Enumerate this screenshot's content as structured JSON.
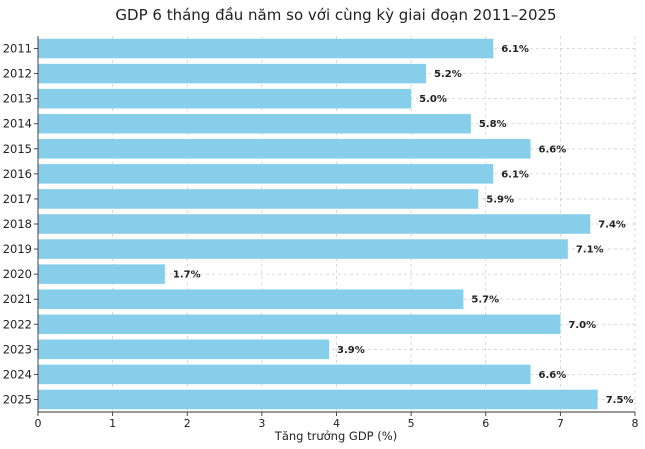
{
  "chart_data": {
    "type": "bar",
    "orientation": "horizontal",
    "title": "GDP 6 tháng đầu năm so với cùng kỳ giai đoạn 2011–2025",
    "xlabel": "Tăng trưởng GDP (%)",
    "ylabel": "",
    "categories": [
      "2011",
      "2012",
      "2013",
      "2014",
      "2015",
      "2016",
      "2017",
      "2018",
      "2019",
      "2020",
      "2021",
      "2022",
      "2023",
      "2024",
      "2025"
    ],
    "values": [
      6.1,
      5.2,
      5.0,
      5.8,
      6.6,
      6.1,
      5.9,
      7.4,
      7.1,
      1.7,
      5.7,
      7.0,
      3.9,
      6.6,
      7.5
    ],
    "data_labels": [
      "6.1%",
      "5.2%",
      "5.0%",
      "5.8%",
      "6.6%",
      "6.1%",
      "5.9%",
      "7.4%",
      "7.1%",
      "1.7%",
      "5.7%",
      "7.0%",
      "3.9%",
      "6.6%",
      "7.5%"
    ],
    "xlim": [
      0,
      8
    ],
    "xticks": [
      "0",
      "1",
      "2",
      "3",
      "4",
      "5",
      "6",
      "7",
      "8"
    ],
    "grid": true,
    "bar_color": "#87ceeb"
  }
}
